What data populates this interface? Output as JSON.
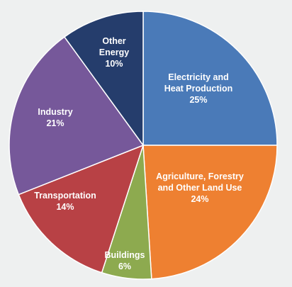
{
  "chart_data": {
    "type": "pie",
    "title": "",
    "slices": [
      {
        "label_lines": [
          "Electricity and",
          "Heat Production"
        ],
        "pct_text": "25%",
        "value": 25,
        "color": "#4a7ab8"
      },
      {
        "label_lines": [
          "Agriculture, Forestry",
          "and Other Land Use"
        ],
        "pct_text": "24%",
        "value": 24,
        "color": "#ee8031"
      },
      {
        "label_lines": [
          "Buildings"
        ],
        "pct_text": "6%",
        "value": 6,
        "color": "#8daa4f"
      },
      {
        "label_lines": [
          "Transportation"
        ],
        "pct_text": "14%",
        "value": 14,
        "color": "#b84145"
      },
      {
        "label_lines": [
          "Industry"
        ],
        "pct_text": "21%",
        "value": 21,
        "color": "#76589a"
      },
      {
        "label_lines": [
          "Other",
          "Energy"
        ],
        "pct_text": "10%",
        "value": 10,
        "color": "#253d6c"
      }
    ]
  }
}
